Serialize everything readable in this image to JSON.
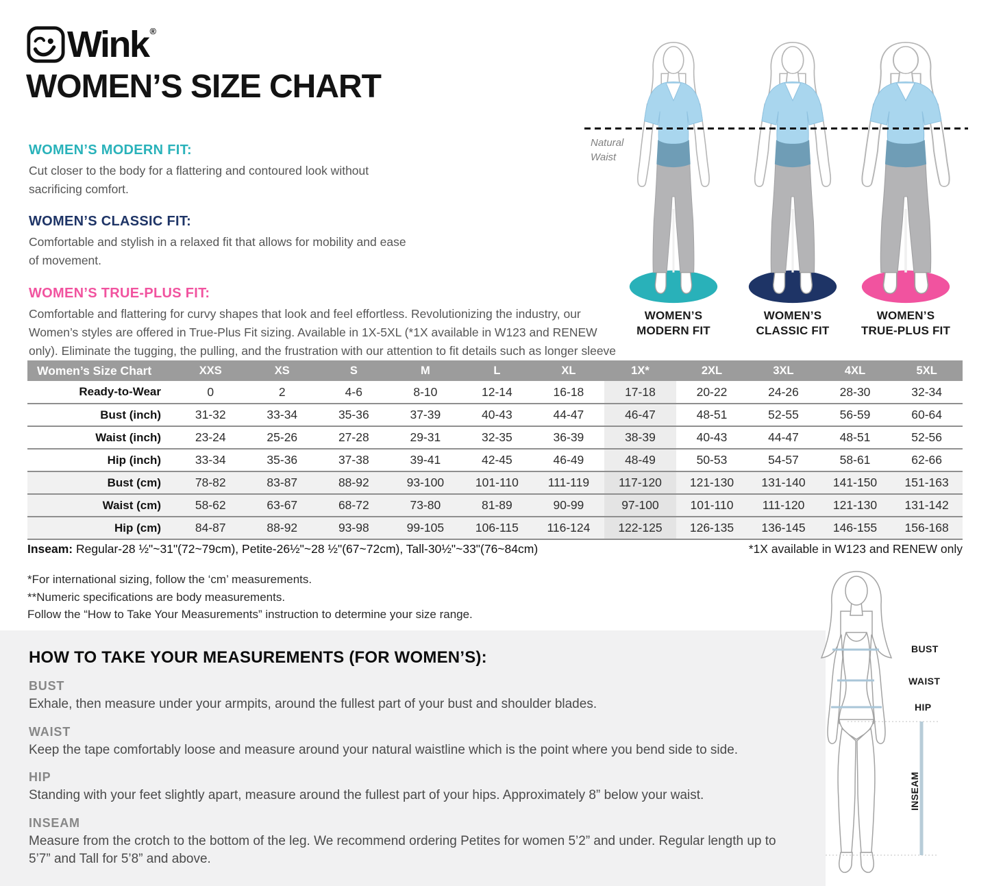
{
  "page": {
    "brand": "Wink",
    "registered": "®",
    "title": "WOMEN’S SIZE CHART"
  },
  "fits": [
    {
      "heading": "WOMEN’S MODERN FIT:",
      "color": "#29b2ba",
      "text": "Cut closer to the body for a flattering and contoured look without sacrificing comfort."
    },
    {
      "heading": "WOMEN’S CLASSIC FIT:",
      "color": "#1e3466",
      "text": "Comfortable and stylish in a relaxed fit that allows for mobility and ease of movement."
    },
    {
      "heading": "WOMEN’S TRUE-PLUS FIT:",
      "color": "#f1539f",
      "text": "Comfortable and flattering for curvy shapes that look and feel effortless. Revolutionizing the industry, our Women’s styles are offered in True-Plus Fit sizing. Available in 1X-5XL (*1X available in W123 and RENEW only). Eliminate the tugging, the pulling, and the frustration with our attention to fit details such as longer sleeve lengths, higher pant rises, and curvier hips."
    }
  ],
  "figures": {
    "natural_waist_line1": "Natural",
    "natural_waist_line2": "Waist",
    "items": [
      {
        "label_line1": "WOMEN’S",
        "label_line2": "MODERN FIT",
        "ellipse_color": "#29b1b9"
      },
      {
        "label_line1": "WOMEN’S",
        "label_line2": "CLASSIC FIT",
        "ellipse_color": "#1e3466"
      },
      {
        "label_line1": "WOMEN’S",
        "label_line2": "TRUE-PLUS FIT",
        "ellipse_color": "#f1539f"
      }
    ]
  },
  "size_table": {
    "title": "Women’s Size Chart",
    "columns": [
      "XXS",
      "XS",
      "S",
      "M",
      "L",
      "XL",
      "1X*",
      "2XL",
      "3XL",
      "4XL",
      "5XL"
    ],
    "highlight_column": "1X*",
    "rows": [
      {
        "label": "Ready-to-Wear",
        "shaded": false,
        "values": [
          "0",
          "2",
          "4-6",
          "8-10",
          "12-14",
          "16-18",
          "17-18",
          "20-22",
          "24-26",
          "28-30",
          "32-34"
        ]
      },
      {
        "label": "Bust (inch)",
        "shaded": false,
        "values": [
          "31-32",
          "33-34",
          "35-36",
          "37-39",
          "40-43",
          "44-47",
          "46-47",
          "48-51",
          "52-55",
          "56-59",
          "60-64"
        ]
      },
      {
        "label": "Waist (inch)",
        "shaded": false,
        "values": [
          "23-24",
          "25-26",
          "27-28",
          "29-31",
          "32-35",
          "36-39",
          "38-39",
          "40-43",
          "44-47",
          "48-51",
          "52-56"
        ]
      },
      {
        "label": "Hip (inch)",
        "shaded": false,
        "values": [
          "33-34",
          "35-36",
          "37-38",
          "39-41",
          "42-45",
          "46-49",
          "48-49",
          "50-53",
          "54-57",
          "58-61",
          "62-66"
        ]
      },
      {
        "label": "Bust (cm)",
        "shaded": true,
        "values": [
          "78-82",
          "83-87",
          "88-92",
          "93-100",
          "101-110",
          "111-119",
          "117-120",
          "121-130",
          "131-140",
          "141-150",
          "151-163"
        ]
      },
      {
        "label": "Waist (cm)",
        "shaded": true,
        "values": [
          "58-62",
          "63-67",
          "68-72",
          "73-80",
          "81-89",
          "90-99",
          "97-100",
          "101-110",
          "111-120",
          "121-130",
          "131-142"
        ]
      },
      {
        "label": "Hip (cm)",
        "shaded": true,
        "values": [
          "84-87",
          "88-92",
          "93-98",
          "99-105",
          "106-115",
          "116-124",
          "122-125",
          "126-135",
          "136-145",
          "146-155",
          "156-168"
        ]
      }
    ]
  },
  "inseam_note": {
    "label": "Inseam:",
    "text": "Regular-28 ½\"~31\"(72~79cm),  Petite-26½\"~28 ½\"(67~72cm),  Tall-30½\"~33\"(76~84cm)"
  },
  "one_x_note": "*1X available in W123 and RENEW only",
  "footnotes": [
    "*For international sizing, follow the ‘cm’ measurements.",
    "**Numeric specifications are body measurements.",
    "Follow the “How to Take Your Measurements” instruction to determine your size range."
  ],
  "measurements": {
    "heading": "HOW TO TAKE YOUR MEASUREMENTS (FOR WOMEN’S):",
    "items": [
      {
        "label": "BUST",
        "text": "Exhale, then measure under your armpits, around the fullest part of your bust and shoulder blades."
      },
      {
        "label": "WAIST",
        "text": "Keep the tape comfortably loose and measure around your natural waistline which is the point where you bend side to side."
      },
      {
        "label": "HIP",
        "text": "Standing with your feet slightly apart, measure around the fullest part of your hips. Approximately 8” below your waist."
      },
      {
        "label": "INSEAM",
        "text": "Measure from the crotch to the bottom of the leg. We recommend ordering Petites for women 5’2” and under. Regular length up to 5’7” and Tall for 5’8” and above."
      }
    ]
  },
  "diagram_labels": {
    "bust": "BUST",
    "waist": "WAIST",
    "hip": "HIP",
    "inseam": "INSEAM"
  }
}
